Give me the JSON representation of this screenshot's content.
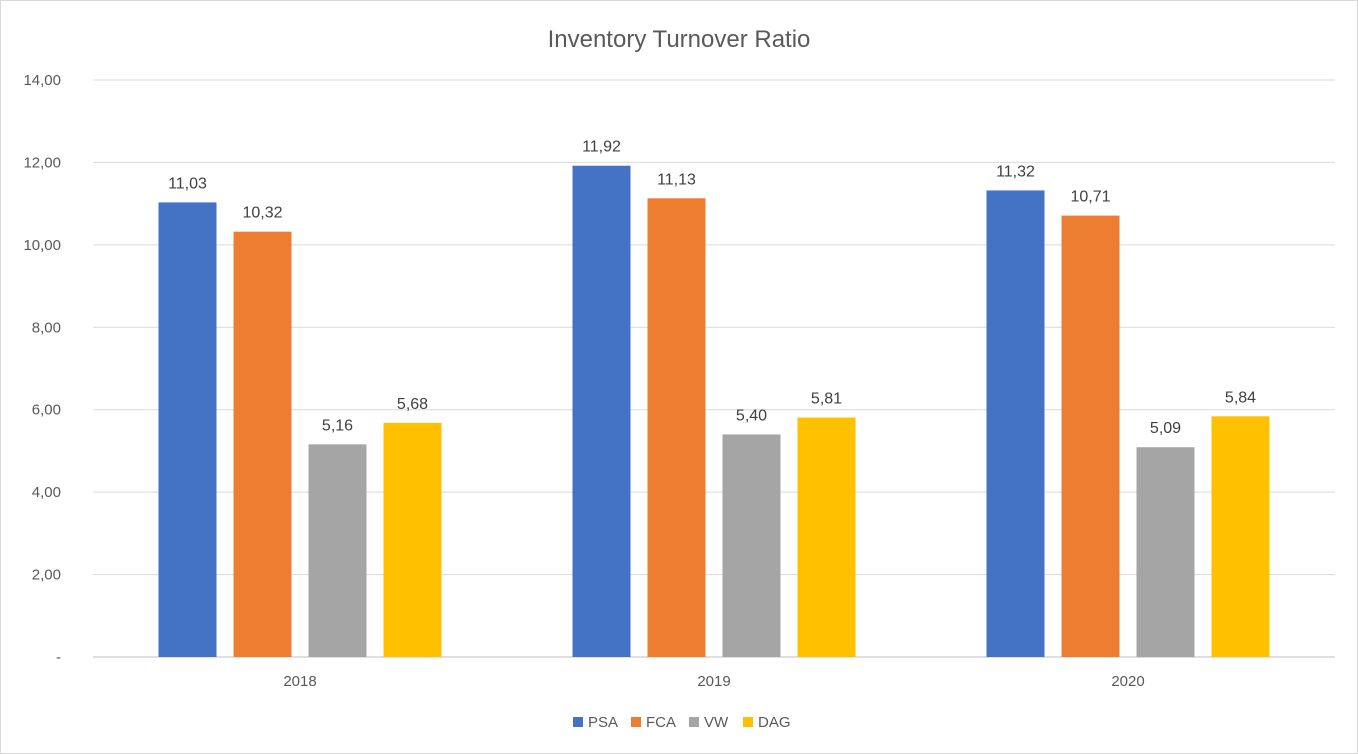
{
  "chart_data": {
    "type": "bar",
    "title": "Inventory Turnover Ratio",
    "xlabel": "",
    "ylabel": "",
    "categories": [
      "2018",
      "2019",
      "2020"
    ],
    "series": [
      {
        "name": "PSA",
        "color": "#4472C4",
        "values": [
          11.03,
          11.92,
          11.32
        ],
        "labels": [
          "11,03",
          "11,92",
          "11,32"
        ]
      },
      {
        "name": "FCA",
        "color": "#ED7D31",
        "values": [
          10.32,
          11.13,
          10.71
        ],
        "labels": [
          "10,32",
          "11,13",
          "10,71"
        ]
      },
      {
        "name": "VW",
        "color": "#A5A5A5",
        "values": [
          5.16,
          5.4,
          5.09
        ],
        "labels": [
          "5,16",
          "5,40",
          "5,09"
        ]
      },
      {
        "name": "DAG",
        "color": "#FFC000",
        "values": [
          5.68,
          5.81,
          5.84
        ],
        "labels": [
          "5,68",
          "5,81",
          "5,84"
        ]
      }
    ],
    "ylim": [
      0,
      14
    ],
    "yticks": [
      0,
      2,
      4,
      6,
      8,
      10,
      12,
      14
    ],
    "ytick_labels": [
      "-",
      "2,00",
      "4,00",
      "6,00",
      "8,00",
      "10,00",
      "12,00",
      "14,00"
    ],
    "grid": true,
    "legend_position": "bottom"
  }
}
